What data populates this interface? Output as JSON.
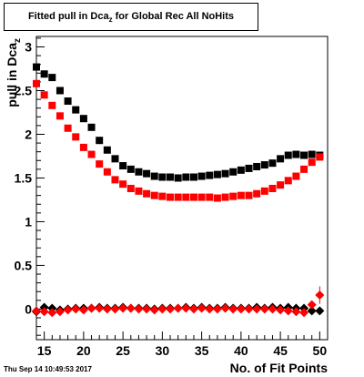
{
  "chart_data": {
    "type": "scatter",
    "title_prefix": "Fitted pull in Dca",
    "title_sub": "z",
    "title_suffix": " for Global Rec All NoHits",
    "xlabel": "No. of Fit Points",
    "ylabel_prefix": "pull in Dca",
    "ylabel_sub": "z",
    "xlim": [
      14,
      51
    ],
    "ylim": [
      -0.35,
      3.12
    ],
    "x_ticks": [
      15,
      20,
      25,
      30,
      35,
      40,
      45,
      50
    ],
    "y_ticks": [
      0,
      0.5,
      1,
      1.5,
      2,
      2.5,
      3
    ],
    "y_tick_labels": [
      "0",
      "0.5",
      "1",
      "1.5",
      "2",
      "2.5",
      "3"
    ],
    "x": [
      14,
      15,
      16,
      17,
      18,
      19,
      20,
      21,
      22,
      23,
      24,
      25,
      26,
      27,
      28,
      29,
      30,
      31,
      32,
      33,
      34,
      35,
      36,
      37,
      38,
      39,
      40,
      41,
      42,
      43,
      44,
      45,
      46,
      47,
      48,
      49,
      50
    ],
    "series": [
      {
        "marker": "square",
        "color": "#000000",
        "values": [
          2.77,
          2.69,
          2.65,
          2.5,
          2.38,
          2.28,
          2.18,
          2.08,
          1.93,
          1.82,
          1.72,
          1.64,
          1.6,
          1.57,
          1.55,
          1.52,
          1.51,
          1.51,
          1.5,
          1.51,
          1.51,
          1.52,
          1.53,
          1.54,
          1.55,
          1.57,
          1.59,
          1.61,
          1.63,
          1.65,
          1.67,
          1.72,
          1.76,
          1.77,
          1.76,
          1.77,
          1.76
        ]
      },
      {
        "marker": "square",
        "color": "#ff0000",
        "values": [
          2.58,
          2.45,
          2.33,
          2.21,
          2.07,
          1.97,
          1.85,
          1.77,
          1.66,
          1.57,
          1.48,
          1.43,
          1.38,
          1.35,
          1.32,
          1.3,
          1.29,
          1.28,
          1.28,
          1.28,
          1.28,
          1.28,
          1.28,
          1.27,
          1.28,
          1.29,
          1.3,
          1.3,
          1.32,
          1.35,
          1.38,
          1.42,
          1.47,
          1.52,
          1.6,
          1.68,
          1.74
        ]
      },
      {
        "marker": "diamond",
        "color": "#000000",
        "values": [
          -0.03,
          0.02,
          0.01,
          -0.01,
          0.0,
          0.01,
          0.01,
          0.01,
          0.02,
          0.01,
          0.01,
          0.02,
          0.01,
          0.01,
          0.01,
          0.0,
          0.01,
          0.01,
          0.01,
          0.02,
          0.01,
          0.02,
          0.01,
          0.01,
          0.02,
          0.01,
          0.01,
          0.01,
          0.02,
          0.01,
          0.02,
          0.01,
          0.02,
          0.01,
          0.01,
          -0.02,
          -0.02
        ]
      },
      {
        "marker": "diamond",
        "color": "#ff0000",
        "values": [
          -0.02,
          -0.03,
          -0.04,
          -0.03,
          -0.01,
          0.0,
          -0.01,
          0.01,
          0.01,
          0.0,
          0.0,
          0.01,
          0.01,
          0.0,
          0.0,
          -0.01,
          0.0,
          0.0,
          0.01,
          0.01,
          0.0,
          0.01,
          0.0,
          0.0,
          0.01,
          0.0,
          0.0,
          0.0,
          0.0,
          0.0,
          0.0,
          -0.01,
          -0.02,
          -0.03,
          -0.04,
          0.05,
          0.16
        ]
      }
    ]
  },
  "timestamp": "Thu Sep 14 10:49:53 2017"
}
